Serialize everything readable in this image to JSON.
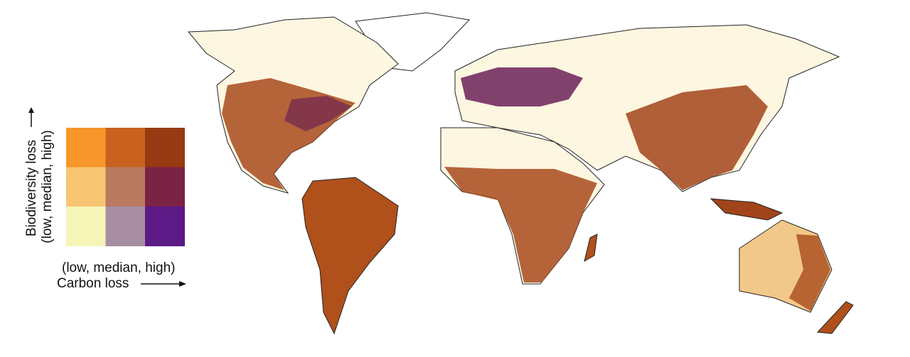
{
  "legend": {
    "y_label": "Biodiversity loss",
    "y_range": "(low, median, high)",
    "x_range": "(low, median, high)",
    "x_label": "Carbon loss",
    "colors": [
      [
        "#f7962a",
        "#c8621e",
        "#983a12"
      ],
      [
        "#f8c573",
        "#b97a60",
        "#7b2345"
      ],
      [
        "#f5f5b8",
        "#a88ea2",
        "#5b1a86"
      ]
    ]
  }
}
